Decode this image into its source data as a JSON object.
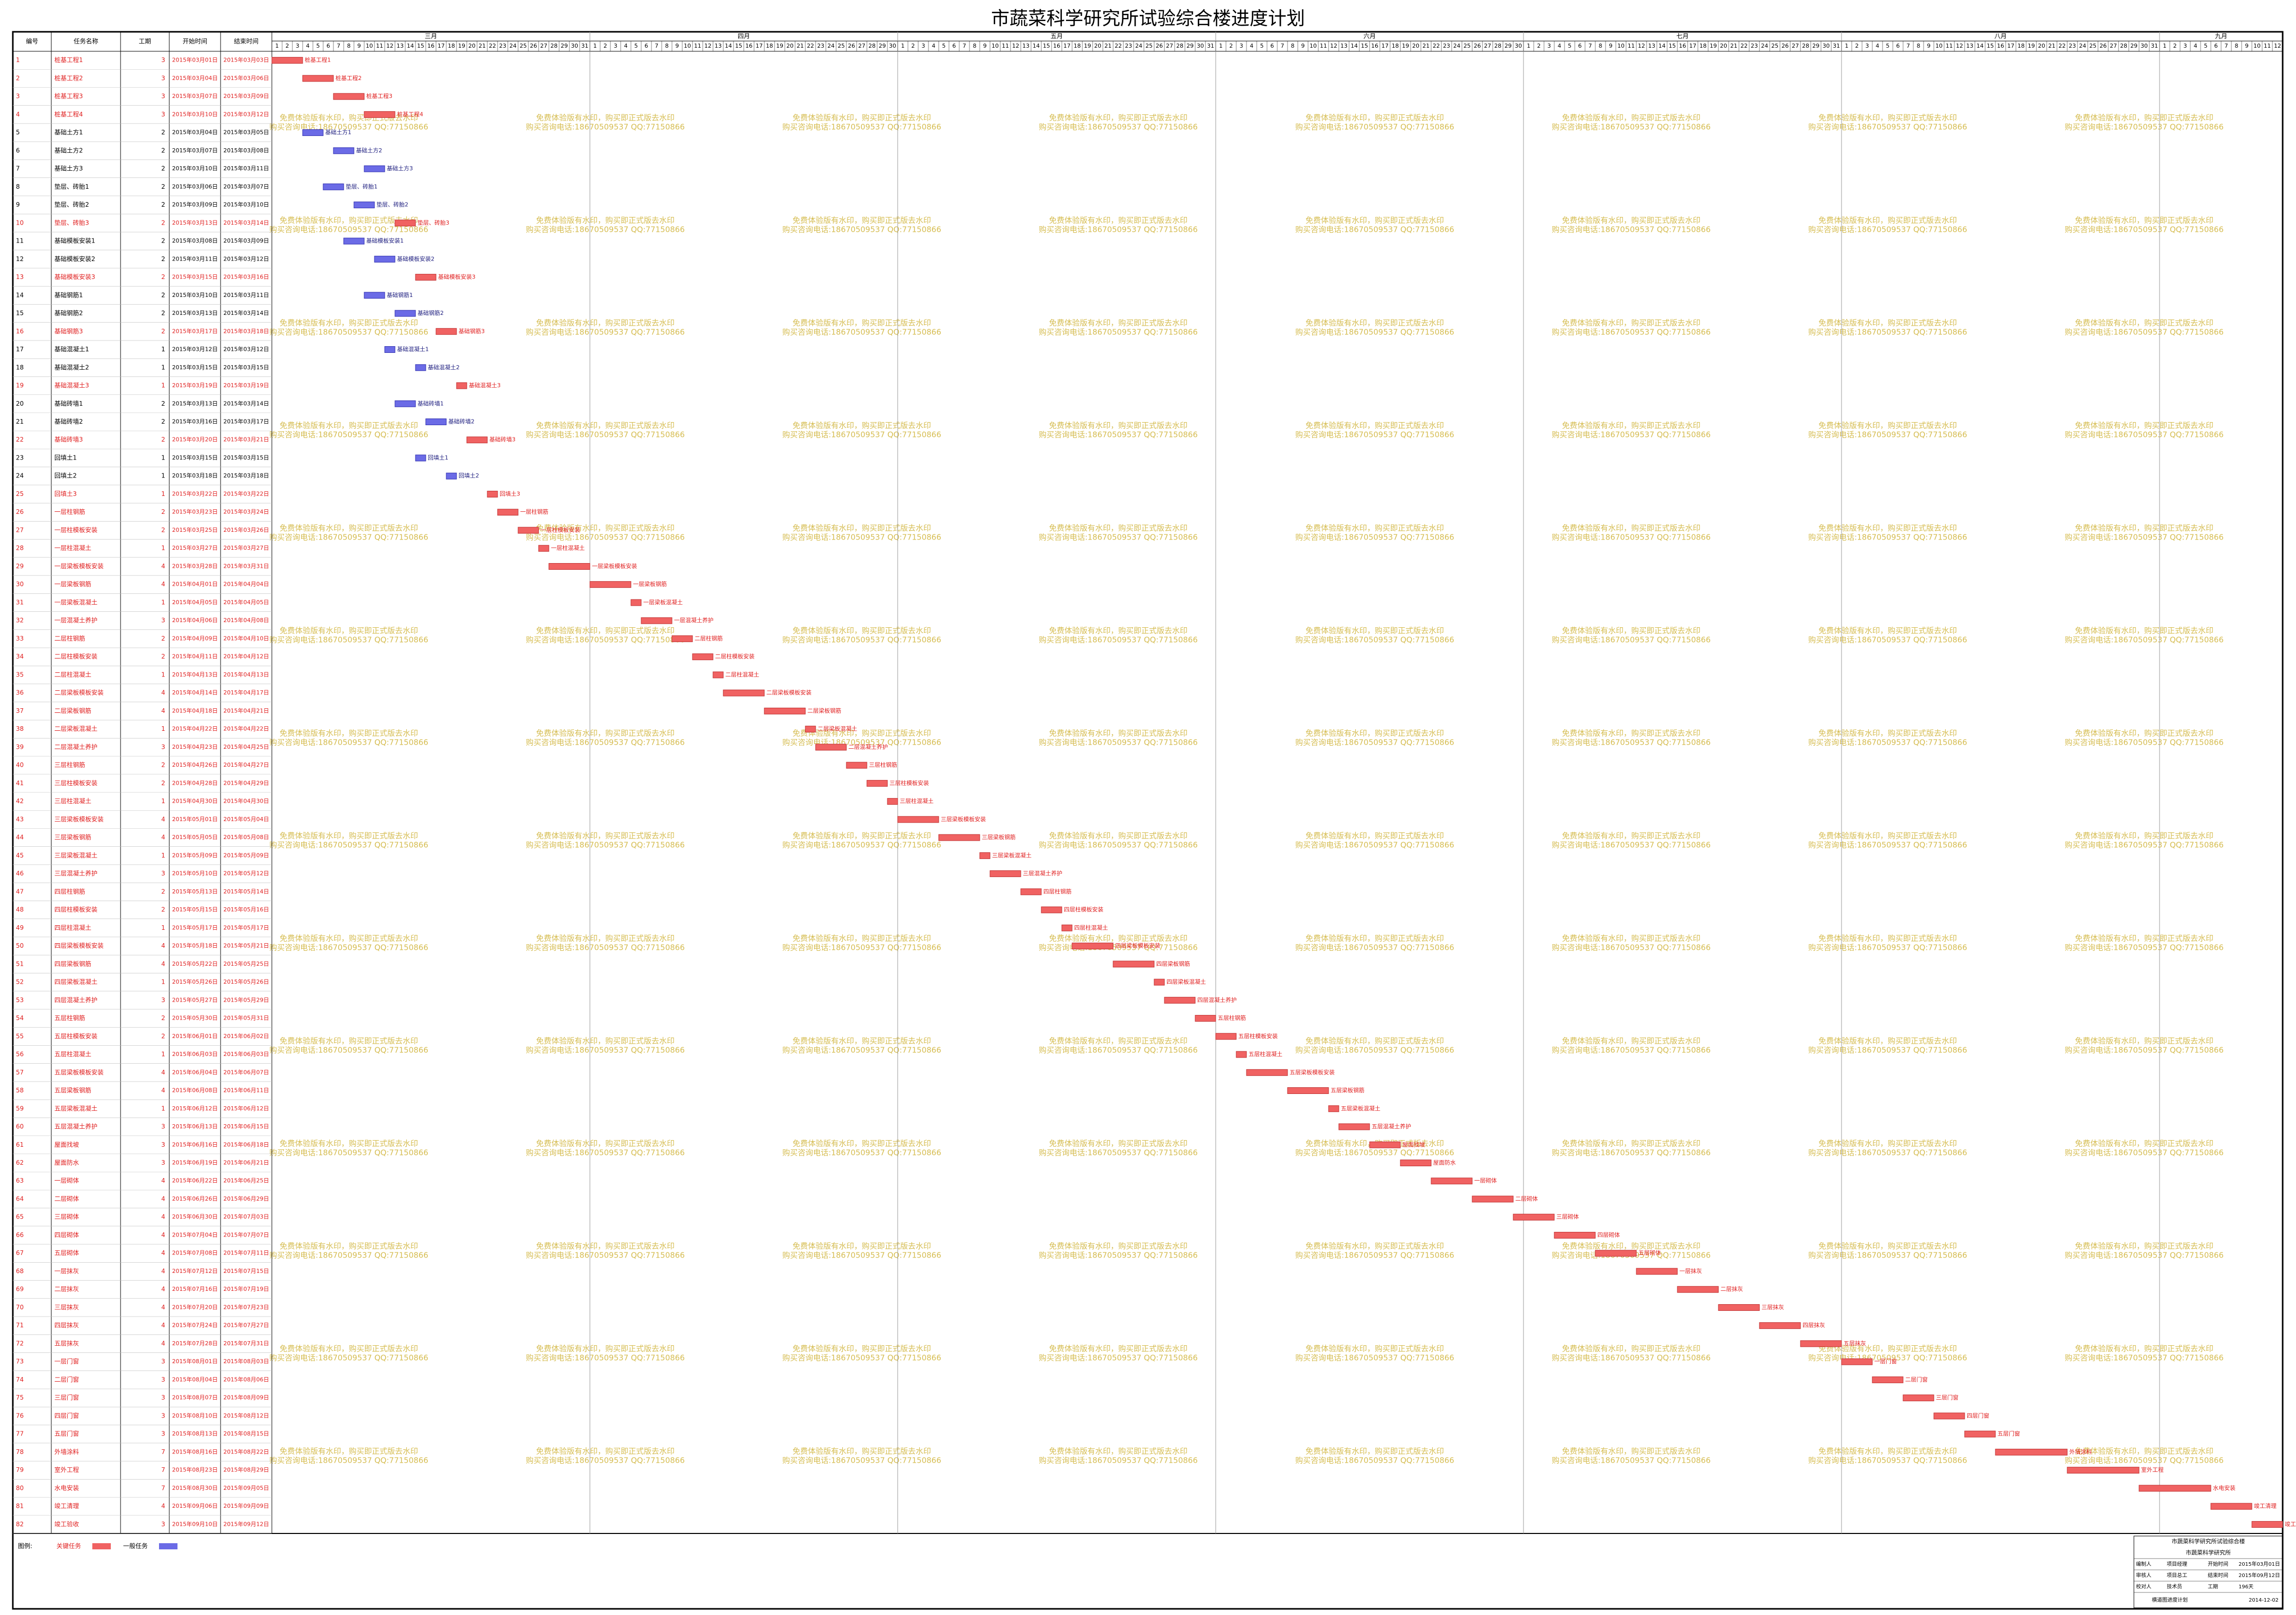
{
  "chart_data": {
    "type": "gantt",
    "title": "市蔬菜科学研究所试验综合楼进度计划",
    "columns": [
      "编号",
      "任务名称",
      "工期",
      "开始时间",
      "结束时间"
    ],
    "critical_color": "#f06262",
    "normal_color": "#6b6be6",
    "months": [
      {
        "name": "三月",
        "days": [
          1,
          2,
          3,
          4,
          5,
          6,
          7,
          8,
          9,
          10,
          11,
          12,
          13,
          14,
          15,
          16,
          17,
          18,
          19,
          20,
          21,
          22,
          23,
          24,
          25,
          26,
          27,
          28,
          29,
          30,
          31
        ]
      },
      {
        "name": "四月",
        "days": [
          1,
          2,
          3,
          4,
          5,
          6,
          7,
          8,
          9,
          10,
          11,
          12,
          13,
          14,
          15,
          16,
          17,
          18,
          19,
          20,
          21,
          22,
          23,
          24,
          25,
          26,
          27,
          28,
          29,
          30
        ]
      },
      {
        "name": "五月",
        "days": [
          1,
          2,
          3,
          4,
          5,
          6,
          7,
          8,
          9,
          10,
          11,
          12,
          13,
          14,
          15,
          16,
          17,
          18,
          19,
          20,
          21,
          22,
          23,
          24,
          25,
          26,
          27,
          28,
          29,
          30,
          31
        ]
      },
      {
        "name": "六月",
        "days": [
          1,
          2,
          3,
          4,
          5,
          6,
          7,
          8,
          9,
          10,
          11,
          12,
          13,
          14,
          15,
          16,
          17,
          18,
          19,
          20,
          21,
          22,
          23,
          24,
          25,
          26,
          27,
          28,
          29,
          30
        ]
      },
      {
        "name": "七月",
        "days": [
          1,
          2,
          3,
          4,
          5,
          6,
          7,
          8,
          9,
          10,
          11,
          12,
          13,
          14,
          15,
          16,
          17,
          18,
          19,
          20,
          21,
          22,
          23,
          24,
          25,
          26,
          27,
          28,
          29,
          30,
          31
        ]
      },
      {
        "name": "八月",
        "days": [
          1,
          2,
          3,
          4,
          5,
          6,
          7,
          8,
          9,
          10,
          11,
          12,
          13,
          14,
          15,
          16,
          17,
          18,
          19,
          20,
          21,
          22,
          23,
          24,
          25,
          26,
          27,
          28,
          29,
          30,
          31
        ]
      },
      {
        "name": "九月",
        "days": [
          1,
          2,
          3,
          4,
          5,
          6,
          7,
          8,
          9,
          10,
          11,
          12
        ]
      }
    ],
    "tasks": [
      {
        "id": 1,
        "name": "桩基工程1",
        "duration": 3,
        "start": "2015年03月01日",
        "end": "2015年03月03日",
        "critical": true
      },
      {
        "id": 2,
        "name": "桩基工程2",
        "duration": 3,
        "start": "2015年03月04日",
        "end": "2015年03月06日",
        "critical": true
      },
      {
        "id": 3,
        "name": "桩基工程3",
        "duration": 3,
        "start": "2015年03月07日",
        "end": "2015年03月09日",
        "critical": true
      },
      {
        "id": 4,
        "name": "桩基工程4",
        "duration": 3,
        "start": "2015年03月10日",
        "end": "2015年03月12日",
        "critical": true
      },
      {
        "id": 5,
        "name": "基础土方1",
        "duration": 2,
        "start": "2015年03月04日",
        "end": "2015年03月05日",
        "critical": false
      },
      {
        "id": 6,
        "name": "基础土方2",
        "duration": 2,
        "start": "2015年03月07日",
        "end": "2015年03月08日",
        "critical": false
      },
      {
        "id": 7,
        "name": "基础土方3",
        "duration": 2,
        "start": "2015年03月10日",
        "end": "2015年03月11日",
        "critical": false
      },
      {
        "id": 8,
        "name": "垫层、砖胎1",
        "duration": 2,
        "start": "2015年03月06日",
        "end": "2015年03月07日",
        "critical": false
      },
      {
        "id": 9,
        "name": "垫层、砖胎2",
        "duration": 2,
        "start": "2015年03月09日",
        "end": "2015年03月10日",
        "critical": false
      },
      {
        "id": 10,
        "name": "垫层、砖胎3",
        "duration": 2,
        "start": "2015年03月13日",
        "end": "2015年03月14日",
        "critical": true
      },
      {
        "id": 11,
        "name": "基础模板安装1",
        "duration": 2,
        "start": "2015年03月08日",
        "end": "2015年03月09日",
        "critical": false
      },
      {
        "id": 12,
        "name": "基础模板安装2",
        "duration": 2,
        "start": "2015年03月11日",
        "end": "2015年03月12日",
        "critical": false
      },
      {
        "id": 13,
        "name": "基础模板安装3",
        "duration": 2,
        "start": "2015年03月15日",
        "end": "2015年03月16日",
        "critical": true
      },
      {
        "id": 14,
        "name": "基础钢筋1",
        "duration": 2,
        "start": "2015年03月10日",
        "end": "2015年03月11日",
        "critical": false
      },
      {
        "id": 15,
        "name": "基础钢筋2",
        "duration": 2,
        "start": "2015年03月13日",
        "end": "2015年03月14日",
        "critical": false
      },
      {
        "id": 16,
        "name": "基础钢筋3",
        "duration": 2,
        "start": "2015年03月17日",
        "end": "2015年03月18日",
        "critical": true
      },
      {
        "id": 17,
        "name": "基础混凝土1",
        "duration": 1,
        "start": "2015年03月12日",
        "end": "2015年03月12日",
        "critical": false
      },
      {
        "id": 18,
        "name": "基础混凝土2",
        "duration": 1,
        "start": "2015年03月15日",
        "end": "2015年03月15日",
        "critical": false
      },
      {
        "id": 19,
        "name": "基础混凝土3",
        "duration": 1,
        "start": "2015年03月19日",
        "end": "2015年03月19日",
        "critical": true
      },
      {
        "id": 20,
        "name": "基础砖墙1",
        "duration": 2,
        "start": "2015年03月13日",
        "end": "2015年03月14日",
        "critical": false
      },
      {
        "id": 21,
        "name": "基础砖墙2",
        "duration": 2,
        "start": "2015年03月16日",
        "end": "2015年03月17日",
        "critical": false
      },
      {
        "id": 22,
        "name": "基础砖墙3",
        "duration": 2,
        "start": "2015年03月20日",
        "end": "2015年03月21日",
        "critical": true
      },
      {
        "id": 23,
        "name": "回填土1",
        "duration": 1,
        "start": "2015年03月15日",
        "end": "2015年03月15日",
        "critical": false
      },
      {
        "id": 24,
        "name": "回填土2",
        "duration": 1,
        "start": "2015年03月18日",
        "end": "2015年03月18日",
        "critical": false
      },
      {
        "id": 25,
        "name": "回填土3",
        "duration": 1,
        "start": "2015年03月22日",
        "end": "2015年03月22日",
        "critical": true
      },
      {
        "id": 26,
        "name": "一层柱钢筋",
        "duration": 2,
        "start": "2015年03月23日",
        "end": "2015年03月24日",
        "critical": true
      },
      {
        "id": 27,
        "name": "一层柱模板安装",
        "duration": 2,
        "start": "2015年03月25日",
        "end": "2015年03月26日",
        "critical": true
      },
      {
        "id": 28,
        "name": "一层柱混凝土",
        "duration": 1,
        "start": "2015年03月27日",
        "end": "2015年03月27日",
        "critical": true
      },
      {
        "id": 29,
        "name": "一层梁板模板安装",
        "duration": 4,
        "start": "2015年03月28日",
        "end": "2015年03月31日",
        "critical": true
      },
      {
        "id": 30,
        "name": "一层梁板钢筋",
        "duration": 4,
        "start": "2015年04月01日",
        "end": "2015年04月04日",
        "critical": true
      },
      {
        "id": 31,
        "name": "一层梁板混凝土",
        "duration": 1,
        "start": "2015年04月05日",
        "end": "2015年04月05日",
        "critical": true
      },
      {
        "id": 32,
        "name": "一层混凝土养护",
        "duration": 3,
        "start": "2015年04月06日",
        "end": "2015年04月08日",
        "critical": true
      },
      {
        "id": 33,
        "name": "二层柱钢筋",
        "duration": 2,
        "start": "2015年04月09日",
        "end": "2015年04月10日",
        "critical": true
      },
      {
        "id": 34,
        "name": "二层柱模板安装",
        "duration": 2,
        "start": "2015年04月11日",
        "end": "2015年04月12日",
        "critical": true
      },
      {
        "id": 35,
        "name": "二层柱混凝土",
        "duration": 1,
        "start": "2015年04月13日",
        "end": "2015年04月13日",
        "critical": true
      },
      {
        "id": 36,
        "name": "二层梁板模板安装",
        "duration": 4,
        "start": "2015年04月14日",
        "end": "2015年04月17日",
        "critical": true
      },
      {
        "id": 37,
        "name": "二层梁板钢筋",
        "duration": 4,
        "start": "2015年04月18日",
        "end": "2015年04月21日",
        "critical": true
      },
      {
        "id": 38,
        "name": "二层梁板混凝土",
        "duration": 1,
        "start": "2015年04月22日",
        "end": "2015年04月22日",
        "critical": true
      },
      {
        "id": 39,
        "name": "二层混凝土养护",
        "duration": 3,
        "start": "2015年04月23日",
        "end": "2015年04月25日",
        "critical": true
      },
      {
        "id": 40,
        "name": "三层柱钢筋",
        "duration": 2,
        "start": "2015年04月26日",
        "end": "2015年04月27日",
        "critical": true
      },
      {
        "id": 41,
        "name": "三层柱模板安装",
        "duration": 2,
        "start": "2015年04月28日",
        "end": "2015年04月29日",
        "critical": true
      },
      {
        "id": 42,
        "name": "三层柱混凝土",
        "duration": 1,
        "start": "2015年04月30日",
        "end": "2015年04月30日",
        "critical": true
      },
      {
        "id": 43,
        "name": "三层梁板模板安装",
        "duration": 4,
        "start": "2015年05月01日",
        "end": "2015年05月04日",
        "critical": true
      },
      {
        "id": 44,
        "name": "三层梁板钢筋",
        "duration": 4,
        "start": "2015年05月05日",
        "end": "2015年05月08日",
        "critical": true
      },
      {
        "id": 45,
        "name": "三层梁板混凝土",
        "duration": 1,
        "start": "2015年05月09日",
        "end": "2015年05月09日",
        "critical": true
      },
      {
        "id": 46,
        "name": "三层混凝土养护",
        "duration": 3,
        "start": "2015年05月10日",
        "end": "2015年05月12日",
        "critical": true
      },
      {
        "id": 47,
        "name": "四层柱钢筋",
        "duration": 2,
        "start": "2015年05月13日",
        "end": "2015年05月14日",
        "critical": true
      },
      {
        "id": 48,
        "name": "四层柱模板安装",
        "duration": 2,
        "start": "2015年05月15日",
        "end": "2015年05月16日",
        "critical": true
      },
      {
        "id": 49,
        "name": "四层柱混凝土",
        "duration": 1,
        "start": "2015年05月17日",
        "end": "2015年05月17日",
        "critical": true
      },
      {
        "id": 50,
        "name": "四层梁板模板安装",
        "duration": 4,
        "start": "2015年05月18日",
        "end": "2015年05月21日",
        "critical": true
      },
      {
        "id": 51,
        "name": "四层梁板钢筋",
        "duration": 4,
        "start": "2015年05月22日",
        "end": "2015年05月25日",
        "critical": true
      },
      {
        "id": 52,
        "name": "四层梁板混凝土",
        "duration": 1,
        "start": "2015年05月26日",
        "end": "2015年05月26日",
        "critical": true
      },
      {
        "id": 53,
        "name": "四层混凝土养护",
        "duration": 3,
        "start": "2015年05月27日",
        "end": "2015年05月29日",
        "critical": true
      },
      {
        "id": 54,
        "name": "五层柱钢筋",
        "duration": 2,
        "start": "2015年05月30日",
        "end": "2015年05月31日",
        "critical": true
      },
      {
        "id": 55,
        "name": "五层柱模板安装",
        "duration": 2,
        "start": "2015年06月01日",
        "end": "2015年06月02日",
        "critical": true
      },
      {
        "id": 56,
        "name": "五层柱混凝土",
        "duration": 1,
        "start": "2015年06月03日",
        "end": "2015年06月03日",
        "critical": true
      },
      {
        "id": 57,
        "name": "五层梁板模板安装",
        "duration": 4,
        "start": "2015年06月04日",
        "end": "2015年06月07日",
        "critical": true
      },
      {
        "id": 58,
        "name": "五层梁板钢筋",
        "duration": 4,
        "start": "2015年06月08日",
        "end": "2015年06月11日",
        "critical": true
      },
      {
        "id": 59,
        "name": "五层梁板混凝土",
        "duration": 1,
        "start": "2015年06月12日",
        "end": "2015年06月12日",
        "critical": true
      },
      {
        "id": 60,
        "name": "五层混凝土养护",
        "duration": 3,
        "start": "2015年06月13日",
        "end": "2015年06月15日",
        "critical": true
      },
      {
        "id": 61,
        "name": "屋面找坡",
        "duration": 3,
        "start": "2015年06月16日",
        "end": "2015年06月18日",
        "critical": true
      },
      {
        "id": 62,
        "name": "屋面防水",
        "duration": 3,
        "start": "2015年06月19日",
        "end": "2015年06月21日",
        "critical": true
      },
      {
        "id": 63,
        "name": "一层砌体",
        "duration": 4,
        "start": "2015年06月22日",
        "end": "2015年06月25日",
        "critical": true
      },
      {
        "id": 64,
        "name": "二层砌体",
        "duration": 4,
        "start": "2015年06月26日",
        "end": "2015年06月29日",
        "critical": true
      },
      {
        "id": 65,
        "name": "三层砌体",
        "duration": 4,
        "start": "2015年06月30日",
        "end": "2015年07月03日",
        "critical": true
      },
      {
        "id": 66,
        "name": "四层砌体",
        "duration": 4,
        "start": "2015年07月04日",
        "end": "2015年07月07日",
        "critical": true
      },
      {
        "id": 67,
        "name": "五层砌体",
        "duration": 4,
        "start": "2015年07月08日",
        "end": "2015年07月11日",
        "critical": true
      },
      {
        "id": 68,
        "name": "一层抹灰",
        "duration": 4,
        "start": "2015年07月12日",
        "end": "2015年07月15日",
        "critical": true
      },
      {
        "id": 69,
        "name": "二层抹灰",
        "duration": 4,
        "start": "2015年07月16日",
        "end": "2015年07月19日",
        "critical": true
      },
      {
        "id": 70,
        "name": "三层抹灰",
        "duration": 4,
        "start": "2015年07月20日",
        "end": "2015年07月23日",
        "critical": true
      },
      {
        "id": 71,
        "name": "四层抹灰",
        "duration": 4,
        "start": "2015年07月24日",
        "end": "2015年07月27日",
        "critical": true
      },
      {
        "id": 72,
        "name": "五层抹灰",
        "duration": 4,
        "start": "2015年07月28日",
        "end": "2015年07月31日",
        "critical": true
      },
      {
        "id": 73,
        "name": "一层门窗",
        "duration": 3,
        "start": "2015年08月01日",
        "end": "2015年08月03日",
        "critical": true
      },
      {
        "id": 74,
        "name": "二层门窗",
        "duration": 3,
        "start": "2015年08月04日",
        "end": "2015年08月06日",
        "critical": true
      },
      {
        "id": 75,
        "name": "三层门窗",
        "duration": 3,
        "start": "2015年08月07日",
        "end": "2015年08月09日",
        "critical": true
      },
      {
        "id": 76,
        "name": "四层门窗",
        "duration": 3,
        "start": "2015年08月10日",
        "end": "2015年08月12日",
        "critical": true
      },
      {
        "id": 77,
        "name": "五层门窗",
        "duration": 3,
        "start": "2015年08月13日",
        "end": "2015年08月15日",
        "critical": true
      },
      {
        "id": 78,
        "name": "外墙涂料",
        "duration": 7,
        "start": "2015年08月16日",
        "end": "2015年08月22日",
        "critical": true
      },
      {
        "id": 79,
        "name": "室外工程",
        "duration": 7,
        "start": "2015年08月23日",
        "end": "2015年08月29日",
        "critical": true
      },
      {
        "id": 80,
        "name": "水电安装",
        "duration": 7,
        "start": "2015年08月30日",
        "end": "2015年09月05日",
        "critical": true
      },
      {
        "id": 81,
        "name": "竣工清理",
        "duration": 4,
        "start": "2015年09月06日",
        "end": "2015年09月09日",
        "critical": true
      },
      {
        "id": 82,
        "name": "竣工验收",
        "duration": 3,
        "start": "2015年09月10日",
        "end": "2015年09月12日",
        "critical": true
      }
    ],
    "legend": {
      "label": "图例:",
      "critical": "关键任务",
      "normal": "一般任务"
    },
    "watermark": [
      "免费体验版有水印，购买即正式版去水印",
      "购买咨询电话:18670509537 QQ:77150866"
    ],
    "title_block": {
      "project": "市蔬菜科学研究所试验综合楼",
      "subtitle": "市蔬菜科学研究所",
      "rows": [
        [
          "编制人",
          "项目经理",
          "开始时间",
          "2015年03月01日"
        ],
        [
          "审核人",
          "项目总工",
          "结束时间",
          "2015年09月12日"
        ],
        [
          "校对人",
          "技术员",
          "工期",
          "196天"
        ]
      ],
      "footer": "横道图进度计划",
      "date": "2014-12-02"
    }
  }
}
